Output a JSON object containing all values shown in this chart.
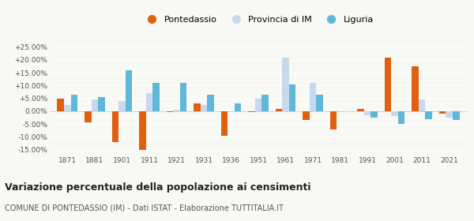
{
  "years": [
    1871,
    1881,
    1901,
    1911,
    1921,
    1931,
    1936,
    1951,
    1961,
    1971,
    1981,
    1991,
    2001,
    2011,
    2021
  ],
  "pontedassio": [
    5.0,
    -4.5,
    -12.0,
    -15.0,
    -0.5,
    3.0,
    -9.5,
    -0.5,
    1.0,
    -3.5,
    -7.0,
    1.0,
    21.0,
    17.5,
    -1.0
  ],
  "provincia_im": [
    2.5,
    4.5,
    4.0,
    7.0,
    0.5,
    2.5,
    0.0,
    5.0,
    21.0,
    11.0,
    0.0,
    -1.5,
    -2.0,
    4.5,
    -2.5
  ],
  "liguria": [
    6.5,
    5.5,
    16.0,
    11.0,
    11.0,
    6.5,
    3.0,
    6.5,
    10.5,
    6.5,
    0.0,
    -2.5,
    -5.0,
    -3.0,
    -3.5
  ],
  "color_pontedassio": "#e06010",
  "color_provincia": "#c8d8ee",
  "color_liguria": "#60b8d8",
  "title": "Variazione percentuale della popolazione ai censimenti",
  "subtitle": "COMUNE DI PONTEDASSIO (IM) - Dati ISTAT - Elaborazione TUTTITALIA.IT",
  "ylim": [
    -17.0,
    27.0
  ],
  "yticks": [
    -15.0,
    -10.0,
    -5.0,
    0.0,
    5.0,
    10.0,
    15.0,
    20.0,
    25.0
  ],
  "background_color": "#f8f8f4"
}
